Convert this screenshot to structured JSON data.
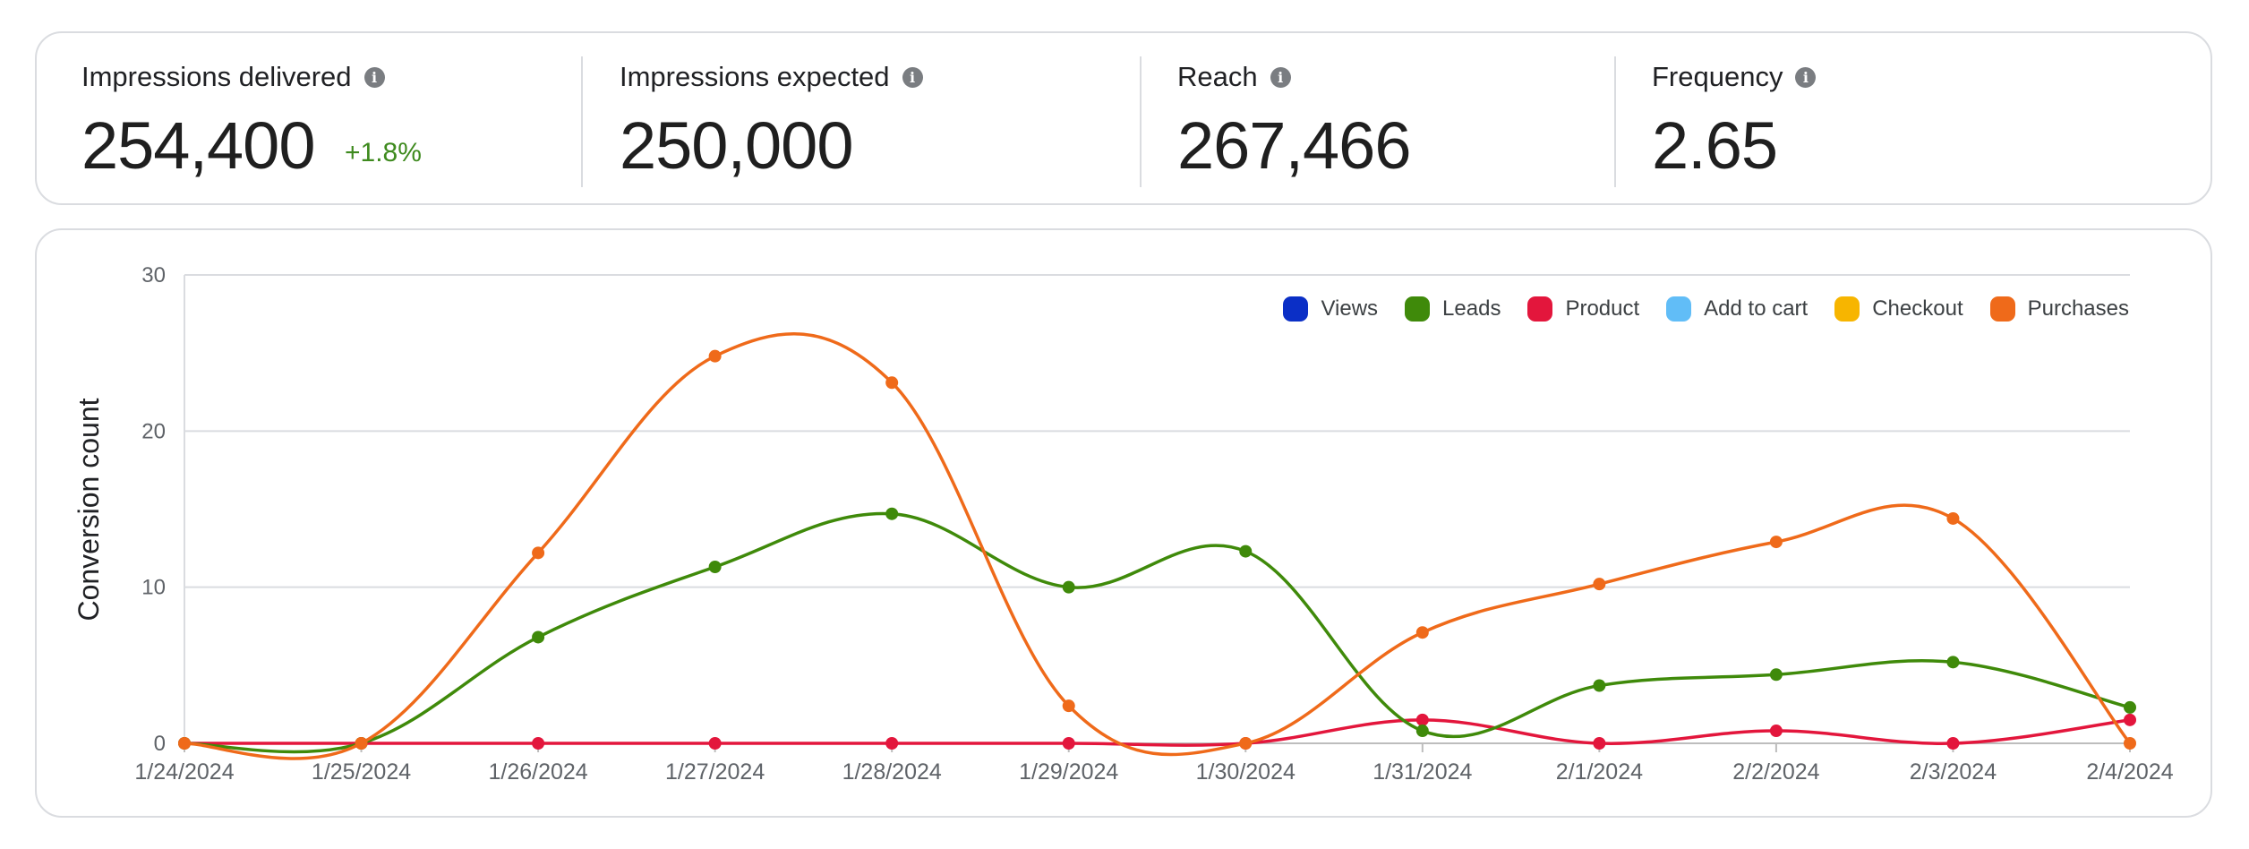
{
  "kpis": [
    {
      "label": "Impressions delivered",
      "value": "254,400",
      "delta": "+1.8%"
    },
    {
      "label": "Impressions expected",
      "value": "250,000",
      "delta": ""
    },
    {
      "label": "Reach",
      "value": "267,466",
      "delta": ""
    },
    {
      "label": "Frequency",
      "value": "2.65",
      "delta": ""
    }
  ],
  "info_icon": {
    "glyph": "i",
    "icon": "info-icon"
  },
  "chart_data": {
    "type": "line",
    "ylabel": "Conversion count",
    "xlabel": "",
    "ylim": [
      0,
      30
    ],
    "yticks": [
      0,
      10,
      20,
      30
    ],
    "grid": true,
    "legend_position": "top-right",
    "categories": [
      "1/24/2024",
      "1/25/2024",
      "1/26/2024",
      "1/27/2024",
      "1/28/2024",
      "1/29/2024",
      "1/30/2024",
      "1/31/2024",
      "2/1/2024",
      "2/2/2024",
      "2/3/2024",
      "2/4/2024"
    ],
    "series": [
      {
        "name": "Views",
        "color": "#0b2fc6",
        "values": null
      },
      {
        "name": "Leads",
        "color": "#3f8a0a",
        "values": [
          0,
          0,
          6.8,
          11.3,
          14.7,
          10,
          12.3,
          0.8,
          3.7,
          4.4,
          5.2,
          2.3
        ]
      },
      {
        "name": "Product",
        "color": "#e3163c",
        "values": [
          0,
          0,
          0,
          0,
          0,
          0,
          0,
          1.5,
          0,
          0.8,
          0,
          1.5
        ]
      },
      {
        "name": "Add to cart",
        "color": "#61bdf7",
        "values": null
      },
      {
        "name": "Checkout",
        "color": "#f7b500",
        "values": null
      },
      {
        "name": "Purchases",
        "color": "#ef6a1a",
        "values": [
          0,
          0,
          12.2,
          24.8,
          23.1,
          2.4,
          0,
          7.1,
          10.2,
          12.9,
          14.4,
          0
        ]
      }
    ]
  }
}
